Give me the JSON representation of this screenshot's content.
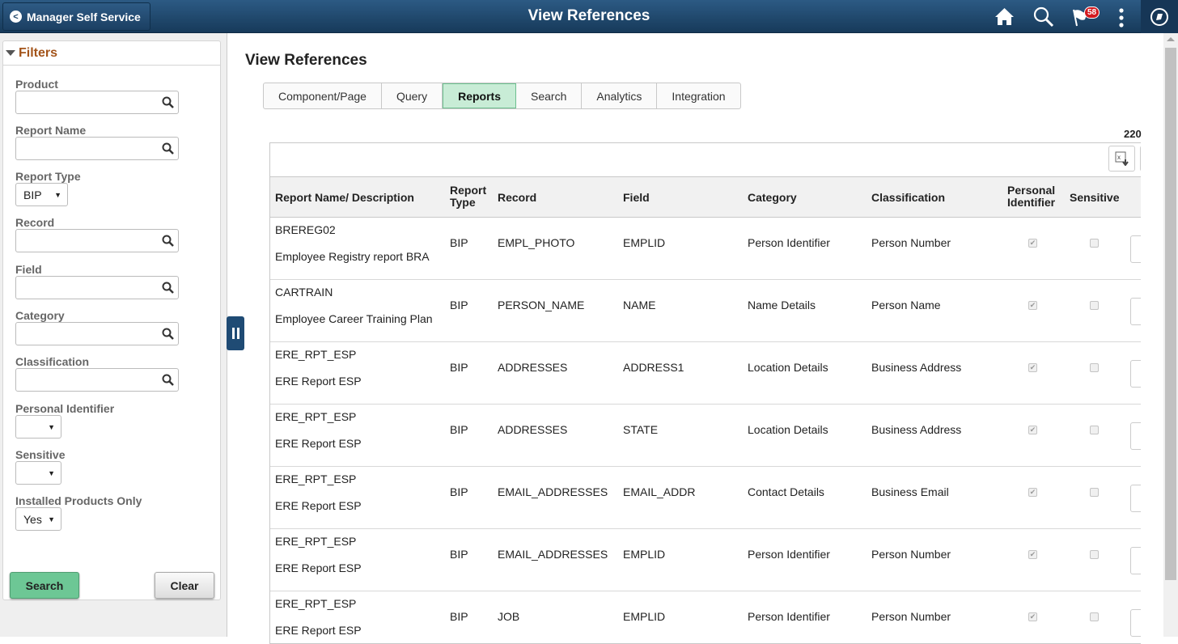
{
  "header": {
    "back_label": "Manager Self Service",
    "title": "View References",
    "notification_count": "58"
  },
  "filters": {
    "title": "Filters",
    "fields": [
      {
        "label": "Product",
        "value": ""
      },
      {
        "label": "Report Name",
        "value": ""
      },
      {
        "label": "Report Type",
        "value": "BIP"
      },
      {
        "label": "Record",
        "value": ""
      },
      {
        "label": "Field",
        "value": ""
      },
      {
        "label": "Category",
        "value": ""
      },
      {
        "label": "Classification",
        "value": ""
      },
      {
        "label": "Personal Identifier",
        "value": ""
      },
      {
        "label": "Sensitive",
        "value": ""
      },
      {
        "label": "Installed Products Only",
        "value": "Yes"
      }
    ],
    "search_label": "Search",
    "clear_label": "Clear"
  },
  "main": {
    "title": "View References",
    "tabs": [
      {
        "label": "Component/Page"
      },
      {
        "label": "Query"
      },
      {
        "label": "Reports",
        "active": true
      },
      {
        "label": "Search"
      },
      {
        "label": "Analytics"
      },
      {
        "label": "Integration"
      }
    ],
    "row_count": "220",
    "columns": [
      "Report Name/ Description",
      "Report Type",
      "Record",
      "Field",
      "Category",
      "Classification",
      "Personal Identifier",
      "Sensitive"
    ],
    "rows": [
      {
        "name": "BREREG02",
        "desc": "Employee Registry report BRA",
        "type": "BIP",
        "record": "EMPL_PHOTO",
        "field": "EMPLID",
        "category": "Person Identifier",
        "classification": "Person Number",
        "pi": true,
        "sensitive": false
      },
      {
        "name": "CARTRAIN",
        "desc": "Employee Career Training Plan",
        "type": "BIP",
        "record": "PERSON_NAME",
        "field": "NAME",
        "category": "Name Details",
        "classification": "Person Name",
        "pi": true,
        "sensitive": false
      },
      {
        "name": "ERE_RPT_ESP",
        "desc": "ERE Report ESP",
        "type": "BIP",
        "record": "ADDRESSES",
        "field": "ADDRESS1",
        "category": "Location Details",
        "classification": "Business Address",
        "pi": true,
        "sensitive": false
      },
      {
        "name": "ERE_RPT_ESP",
        "desc": "ERE Report ESP",
        "type": "BIP",
        "record": "ADDRESSES",
        "field": "STATE",
        "category": "Location Details",
        "classification": "Business Address",
        "pi": true,
        "sensitive": false
      },
      {
        "name": "ERE_RPT_ESP",
        "desc": "ERE Report ESP",
        "type": "BIP",
        "record": "EMAIL_ADDRESSES",
        "field": "EMAIL_ADDR",
        "category": "Contact Details",
        "classification": "Business Email",
        "pi": true,
        "sensitive": false
      },
      {
        "name": "ERE_RPT_ESP",
        "desc": "ERE Report ESP",
        "type": "BIP",
        "record": "EMAIL_ADDRESSES",
        "field": "EMPLID",
        "category": "Person Identifier",
        "classification": "Person Number",
        "pi": true,
        "sensitive": false
      },
      {
        "name": "ERE_RPT_ESP",
        "desc": "ERE Report ESP",
        "type": "BIP",
        "record": "JOB",
        "field": "EMPLID",
        "category": "Person Identifier",
        "classification": "Person Number",
        "pi": true,
        "sensitive": false
      }
    ]
  },
  "colors": {
    "header": "#1f4b74",
    "filters_title": "#a3541a",
    "active_tab": "#c8ecd6",
    "search_button": "#6dc795",
    "badge": "#d2191f"
  }
}
